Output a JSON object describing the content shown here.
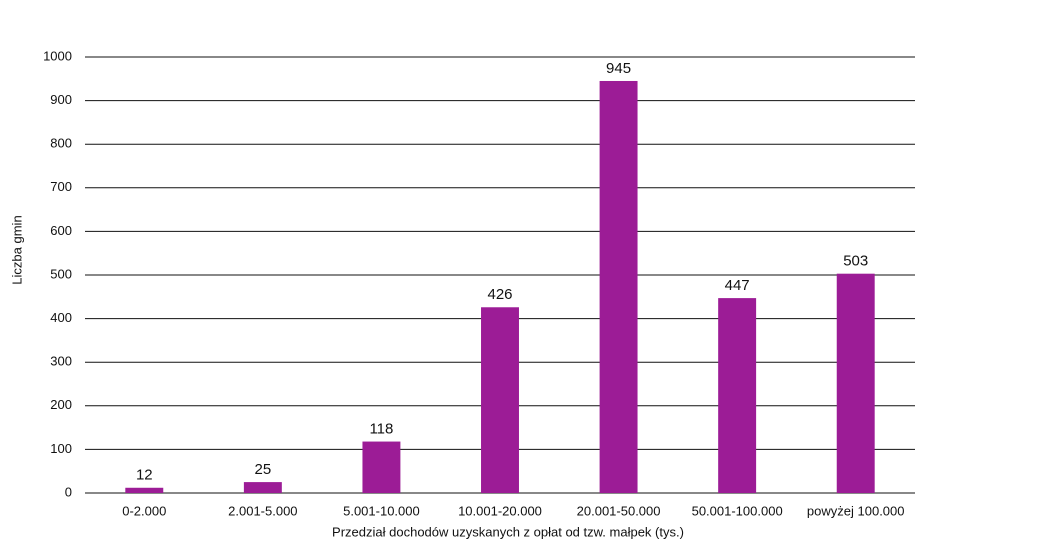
{
  "chart_data": {
    "type": "bar",
    "x_label": "Przedział dochodów uzyskanych z opłat od tzw. małpek (tys.)",
    "y_label": "Liczba gmin",
    "categories": [
      "0-2.000",
      "2.001-5.000",
      "5.001-10.000",
      "10.001-20.000",
      "20.001-50.000",
      "50.001-100.000",
      "powyżej 100.000"
    ],
    "values": [
      12,
      25,
      118,
      426,
      945,
      447,
      503
    ],
    "color": "#9c1c96",
    "ylim": [
      0,
      1000
    ],
    "yticks": [
      0,
      100,
      200,
      300,
      400,
      500,
      600,
      700,
      800,
      900,
      1000
    ],
    "grid": true
  }
}
